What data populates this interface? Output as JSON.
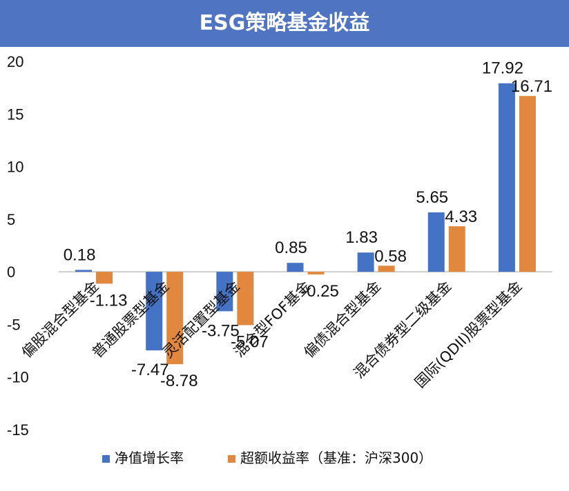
{
  "chart_data": {
    "type": "bar",
    "title": "ESG策略基金收益",
    "categories": [
      "偏股混合型基金",
      "普通股票型基金",
      "灵活配置型基金",
      "混合型FOF基金",
      "偏债混合型基金",
      "混合债券型二级基金",
      "国际(QDII)股票型基金"
    ],
    "series": [
      {
        "name": "净值增长率",
        "values": [
          0.18,
          -7.47,
          -3.75,
          0.85,
          1.83,
          5.65,
          17.92
        ],
        "color": "#4472c4"
      },
      {
        "name": "超额收益率（基准：沪深300）",
        "values": [
          -1.13,
          -8.78,
          -5.07,
          -0.25,
          0.58,
          4.33,
          16.71
        ],
        "color": "#e2883e"
      }
    ],
    "ylim": [
      -15,
      20
    ],
    "yticks": [
      20,
      15,
      10,
      5,
      0,
      -5,
      -10,
      -15
    ],
    "legend_position": "bottom",
    "grid": false
  }
}
